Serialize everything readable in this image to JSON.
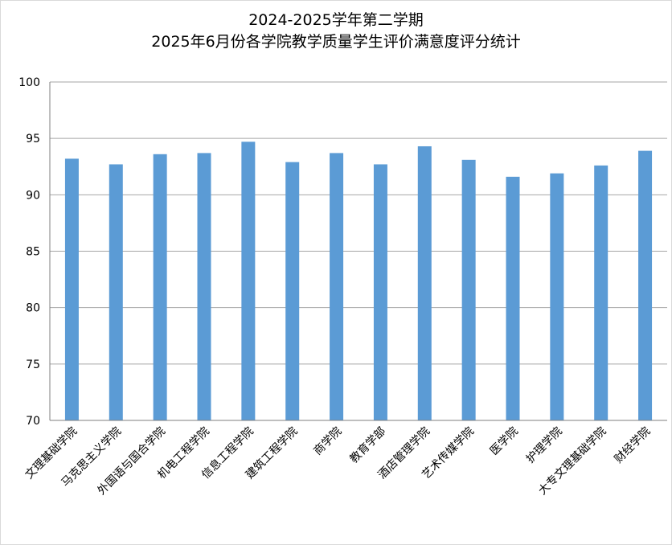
{
  "chart_data": {
    "type": "bar",
    "title_line1": "2024-2025学年第二学期",
    "title_line2": "2025年6月份各学院教学质量学生评价满意度评分统计",
    "xlabel": "",
    "ylabel": "",
    "ylim": [
      70,
      100
    ],
    "yticks": [
      70,
      75,
      80,
      85,
      90,
      95,
      100
    ],
    "grid": true,
    "legend": "none",
    "bar_color": "#5b9bd5",
    "categories": [
      "文理基础学院",
      "马克思主义学院",
      "外国语与国合学院",
      "机电工程学院",
      "信息工程学院",
      "建筑工程学院",
      "商学院",
      "教育学部",
      "酒店管理学院",
      "艺术传媒学院",
      "医学院",
      "护理学院",
      "大专文理基础学院",
      "财经学院"
    ],
    "values": [
      93.2,
      92.7,
      93.6,
      93.7,
      94.7,
      92.9,
      93.7,
      92.7,
      94.3,
      93.1,
      91.6,
      91.9,
      92.6,
      93.9
    ]
  }
}
